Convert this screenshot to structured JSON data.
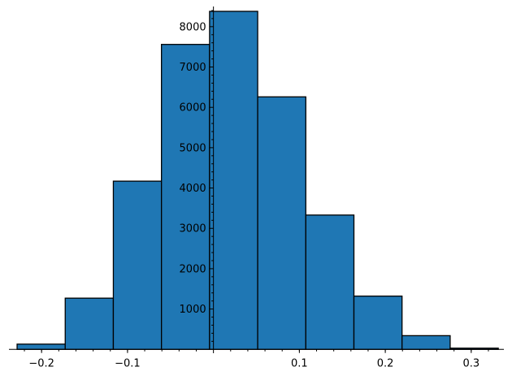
{
  "chart_data": {
    "type": "bar",
    "title": "",
    "xlabel": "",
    "ylabel": "",
    "grid": false,
    "colors": {
      "bar_fill": "#1f77b4",
      "bar_edge": "#000000",
      "axis": "#000000"
    },
    "xlim": [
      -0.238,
      0.338
    ],
    "ylim": [
      -95,
      8500
    ],
    "bins": [
      {
        "x0": -0.2285,
        "x1": -0.1725,
        "count": 130
      },
      {
        "x0": -0.1725,
        "x1": -0.1165,
        "count": 1270
      },
      {
        "x0": -0.1165,
        "x1": -0.0605,
        "count": 4170
      },
      {
        "x0": -0.0605,
        "x1": -0.0045,
        "count": 7560
      },
      {
        "x0": -0.0045,
        "x1": 0.0515,
        "count": 8380
      },
      {
        "x0": 0.0515,
        "x1": 0.1075,
        "count": 6260
      },
      {
        "x0": 0.1075,
        "x1": 0.1635,
        "count": 3330
      },
      {
        "x0": 0.1635,
        "x1": 0.2195,
        "count": 1320
      },
      {
        "x0": 0.2195,
        "x1": 0.2755,
        "count": 340
      },
      {
        "x0": 0.2755,
        "x1": 0.3315,
        "count": 30
      }
    ],
    "x_ticks": [
      {
        "value": -0.2,
        "label": "−0.2"
      },
      {
        "value": -0.1,
        "label": "−0.1"
      },
      {
        "value": 0.1,
        "label": "0.1"
      },
      {
        "value": 0.2,
        "label": "0.2"
      },
      {
        "value": 0.3,
        "label": "0.3"
      }
    ],
    "y_ticks": [
      {
        "value": 1000,
        "label": "1000"
      },
      {
        "value": 2000,
        "label": "2000"
      },
      {
        "value": 3000,
        "label": "3000"
      },
      {
        "value": 4000,
        "label": "4000"
      },
      {
        "value": 5000,
        "label": "5000"
      },
      {
        "value": 6000,
        "label": "6000"
      },
      {
        "value": 7000,
        "label": "7000"
      },
      {
        "value": 8000,
        "label": "8000"
      }
    ],
    "x_minor_step": 0.02,
    "y_minor_step": 200
  }
}
